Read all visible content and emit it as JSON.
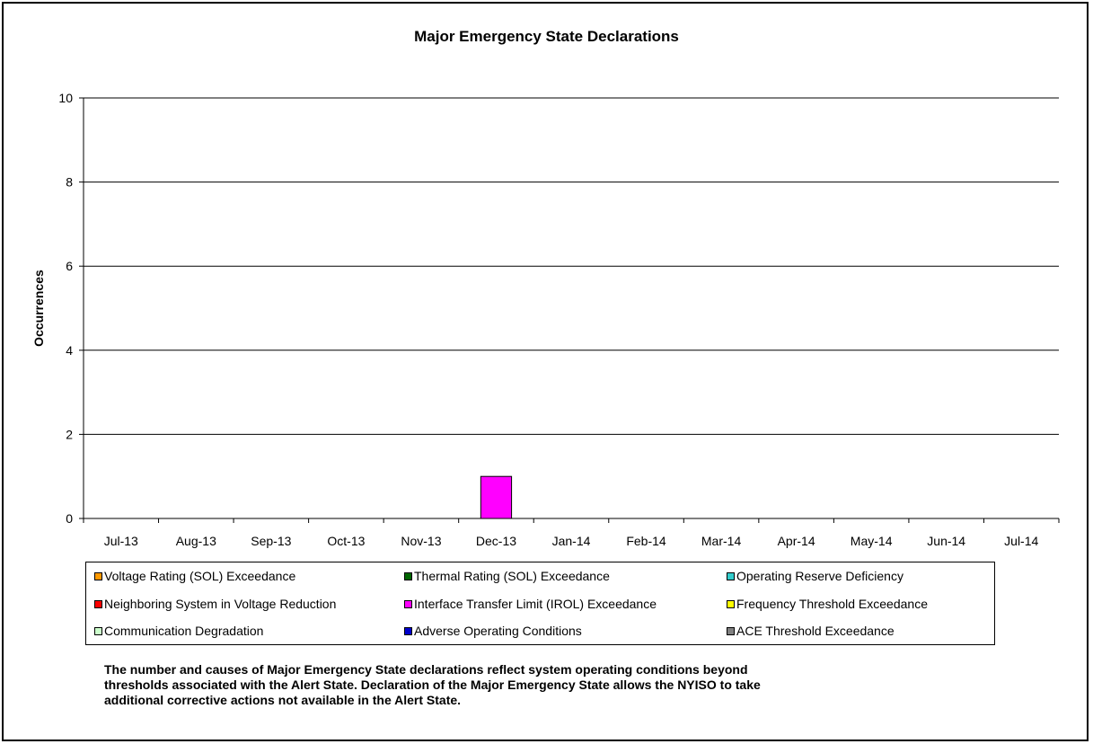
{
  "chart_data": {
    "type": "bar",
    "title": "Major Emergency State Declarations",
    "ylabel": "Occurrences",
    "xlabel": "",
    "ylim": [
      0,
      10
    ],
    "yticks": [
      0,
      2,
      4,
      6,
      8,
      10
    ],
    "grid": true,
    "stacked": true,
    "legend_placement": "bottom",
    "categories": [
      "Jul-13",
      "Aug-13",
      "Sep-13",
      "Oct-13",
      "Nov-13",
      "Dec-13",
      "Jan-14",
      "Feb-14",
      "Mar-14",
      "Apr-14",
      "May-14",
      "Jun-14",
      "Jul-14"
    ],
    "series": [
      {
        "name": "Voltage Rating (SOL) Exceedance",
        "color": "#ff9900",
        "values": [
          0,
          0,
          0,
          0,
          0,
          0,
          0,
          0,
          0,
          0,
          0,
          0,
          0
        ]
      },
      {
        "name": "Thermal Rating (SOL) Exceedance",
        "color": "#006600",
        "values": [
          0,
          0,
          0,
          0,
          0,
          0,
          0,
          0,
          0,
          0,
          0,
          0,
          0
        ]
      },
      {
        "name": "Operating Reserve Deficiency",
        "color": "#33cccc",
        "values": [
          0,
          0,
          0,
          0,
          0,
          0,
          0,
          0,
          0,
          0,
          0,
          0,
          0
        ]
      },
      {
        "name": "Neighboring System in Voltage Reduction",
        "color": "#ff0000",
        "values": [
          0,
          0,
          0,
          0,
          0,
          0,
          0,
          0,
          0,
          0,
          0,
          0,
          0
        ]
      },
      {
        "name": "Interface Transfer Limit (IROL) Exceedance",
        "color": "#ff00ff",
        "values": [
          0,
          0,
          0,
          0,
          0,
          1,
          0,
          0,
          0,
          0,
          0,
          0,
          0
        ]
      },
      {
        "name": "Frequency Threshold Exceedance",
        "color": "#ffff00",
        "values": [
          0,
          0,
          0,
          0,
          0,
          0,
          0,
          0,
          0,
          0,
          0,
          0,
          0
        ]
      },
      {
        "name": "Communication Degradation",
        "color": "#ccffcc",
        "values": [
          0,
          0,
          0,
          0,
          0,
          0,
          0,
          0,
          0,
          0,
          0,
          0,
          0
        ]
      },
      {
        "name": "Adverse Operating Conditions",
        "color": "#0000cc",
        "values": [
          0,
          0,
          0,
          0,
          0,
          0,
          0,
          0,
          0,
          0,
          0,
          0,
          0
        ]
      },
      {
        "name": "ACE Threshold Exceedance",
        "color": "#808080",
        "values": [
          0,
          0,
          0,
          0,
          0,
          0,
          0,
          0,
          0,
          0,
          0,
          0,
          0
        ]
      }
    ]
  },
  "note": [
    "The number and causes of Major Emergency State declarations reflect system operating conditions beyond",
    "thresholds associated with the Alert State.  Declaration of the Major Emergency State allows the NYISO to take",
    "additional corrective actions not available in the Alert State."
  ]
}
